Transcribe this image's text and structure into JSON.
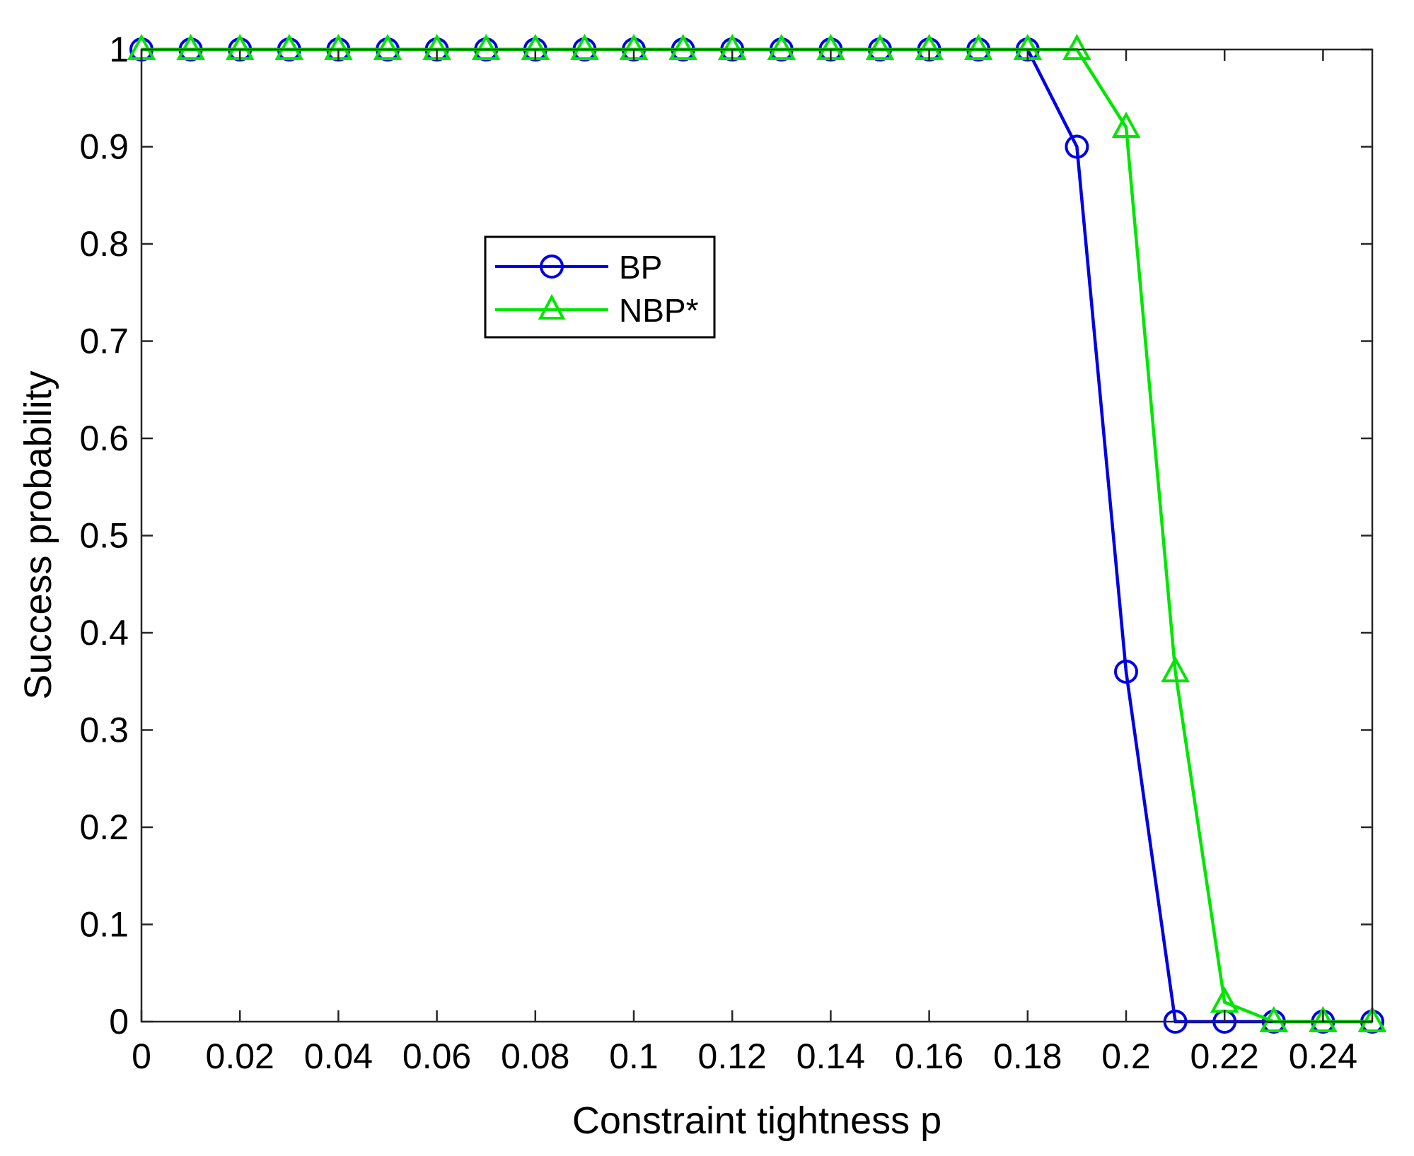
{
  "chart_data": {
    "type": "line",
    "xlabel": "Constraint tightness p",
    "ylabel": "Success probability",
    "xlim": [
      0,
      0.25
    ],
    "ylim": [
      0,
      1
    ],
    "xticks": [
      "0",
      "0.02",
      "0.04",
      "0.06",
      "0.08",
      "0.1",
      "0.12",
      "0.14",
      "0.16",
      "0.18",
      "0.2",
      "0.22",
      "0.24"
    ],
    "yticks": [
      "0",
      "0.1",
      "0.2",
      "0.3",
      "0.4",
      "0.5",
      "0.6",
      "0.7",
      "0.8",
      "0.9",
      "1"
    ],
    "grid": false,
    "legend_position": "upper-middle-left",
    "x": [
      0,
      0.01,
      0.02,
      0.03,
      0.04,
      0.05,
      0.06,
      0.07,
      0.08,
      0.09,
      0.1,
      0.11,
      0.12,
      0.13,
      0.14,
      0.15,
      0.16,
      0.17,
      0.18,
      0.19,
      0.2,
      0.21,
      0.22,
      0.23,
      0.24,
      0.25
    ],
    "series": [
      {
        "name": "BP",
        "color": "#0000e6",
        "marker": "circle",
        "values": [
          1,
          1,
          1,
          1,
          1,
          1,
          1,
          1,
          1,
          1,
          1,
          1,
          1,
          1,
          1,
          1,
          1,
          1,
          1,
          0.9,
          0.36,
          0,
          0,
          0,
          0,
          0
        ]
      },
      {
        "name": "NBP*",
        "color": "#00e600",
        "marker": "triangle",
        "values": [
          1,
          1,
          1,
          1,
          1,
          1,
          1,
          1,
          1,
          1,
          1,
          1,
          1,
          1,
          1,
          1,
          1,
          1,
          1,
          1,
          0.92,
          0.36,
          0.02,
          0,
          0,
          0
        ]
      }
    ]
  }
}
